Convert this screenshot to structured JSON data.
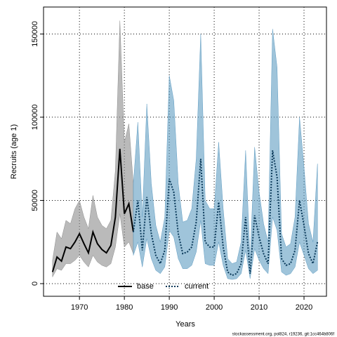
{
  "chart_data": {
    "type": "line",
    "xlabel": "Years",
    "ylabel": "Recruits (age 1)",
    "xlim": [
      1962,
      2025
    ],
    "ylim": [
      -7600,
      166200
    ],
    "xticks": [
      1970,
      1980,
      1990,
      2000,
      2010,
      2020
    ],
    "yticks": [
      0,
      50000,
      100000,
      150000
    ],
    "grid": true,
    "legend": "bottom",
    "footnote": "stockassessment.org, pol824, r19236, git:1cc464b806f",
    "series": [
      {
        "name": "base",
        "color": "#000000",
        "band_color": "#8c8c8c",
        "dashed": false,
        "x": [
          1964,
          1965,
          1966,
          1967,
          1968,
          1969,
          1970,
          1971,
          1972,
          1973,
          1974,
          1975,
          1976,
          1977,
          1978,
          1979,
          1980,
          1981,
          1982
        ],
        "values": [
          7000,
          16000,
          13500,
          22000,
          21000,
          25000,
          30000,
          24000,
          18500,
          31000,
          24000,
          20500,
          18500,
          23000,
          40000,
          81000,
          42000,
          48000,
          31000
        ],
        "upper": [
          14000,
          31000,
          27000,
          38000,
          36000,
          45000,
          50000,
          40000,
          33000,
          53000,
          40000,
          35000,
          33000,
          38000,
          68000,
          158000,
          85000,
          96000,
          60000
        ],
        "lower": [
          4000,
          9000,
          8000,
          12000,
          12000,
          14000,
          17000,
          13000,
          10000,
          17000,
          13000,
          11000,
          10000,
          12000,
          22000,
          42000,
          22000,
          25000,
          18000
        ]
      },
      {
        "name": "current",
        "color": "#0b3a5a",
        "band_color": "#5f9cc2",
        "dashed": true,
        "x": [
          1982,
          1983,
          1984,
          1985,
          1986,
          1987,
          1988,
          1989,
          1990,
          1991,
          1992,
          1993,
          1994,
          1995,
          1996,
          1997,
          1998,
          1999,
          2000,
          2001,
          2002,
          2003,
          2004,
          2005,
          2006,
          2007,
          2008,
          2009,
          2010,
          2011,
          2012,
          2013,
          2014,
          2015,
          2016,
          2017,
          2018,
          2019,
          2020,
          2021,
          2022,
          2023
        ],
        "values": [
          31000,
          50000,
          20000,
          52000,
          30000,
          17000,
          12000,
          20000,
          63000,
          55000,
          30000,
          18000,
          19000,
          22000,
          37000,
          75000,
          25000,
          22000,
          22000,
          49000,
          22000,
          7000,
          5000,
          6000,
          12000,
          40000,
          6000,
          41000,
          28000,
          18000,
          12000,
          80000,
          64000,
          15000,
          11000,
          12000,
          20000,
          50000,
          35000,
          18000,
          12000,
          25000
        ],
        "upper": [
          60000,
          97000,
          40000,
          108000,
          60000,
          35000,
          25000,
          40000,
          125000,
          110000,
          60000,
          37000,
          38000,
          45000,
          75000,
          150000,
          50000,
          45000,
          45000,
          85000,
          45000,
          15000,
          12000,
          13000,
          25000,
          80000,
          14000,
          82000,
          55000,
          36000,
          25000,
          153000,
          130000,
          30000,
          22000,
          24000,
          40000,
          100000,
          70000,
          36000,
          25000,
          72000
        ],
        "lower": [
          17000,
          25000,
          10000,
          27000,
          15000,
          8000,
          6000,
          10000,
          32000,
          28000,
          15000,
          9000,
          9000,
          11000,
          19000,
          38000,
          12000,
          11000,
          11000,
          25000,
          11000,
          3000,
          2500,
          3000,
          6000,
          20000,
          3000,
          21000,
          14000,
          9000,
          6000,
          40000,
          32000,
          7000,
          5000,
          6000,
          10000,
          25000,
          17000,
          9000,
          6000,
          8000
        ]
      }
    ]
  }
}
